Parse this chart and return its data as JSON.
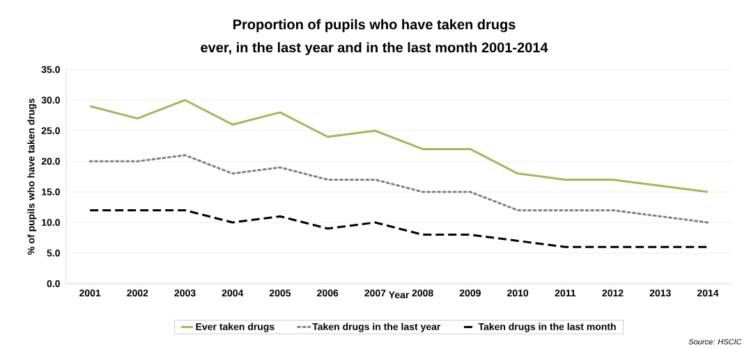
{
  "chart_data": {
    "type": "line",
    "title": "Proportion of pupils who have taken drugs",
    "subtitle": "ever, in the last year and in the last month 2001-2014",
    "xlabel": "Year",
    "ylabel": "% of pupils who have taken drugs",
    "categories": [
      "2001",
      "2002",
      "2003",
      "2004",
      "2005",
      "2006",
      "2007",
      "2008",
      "2009",
      "2010",
      "2011",
      "2012",
      "2013",
      "2014"
    ],
    "series": [
      {
        "name": "Ever taken drugs",
        "color": "#9bbb59",
        "line_style": "solid",
        "values": [
          29,
          27,
          30,
          26,
          28,
          24,
          25,
          22,
          22,
          18,
          17,
          17,
          16,
          15
        ]
      },
      {
        "name": "Taken drugs in the last year",
        "color": "#808080",
        "line_style": "dotted",
        "values": [
          20,
          20,
          21,
          18,
          19,
          17,
          17,
          15,
          15,
          12,
          12,
          12,
          11,
          10
        ]
      },
      {
        "name": "Taken drugs in the last month",
        "color": "#000000",
        "line_style": "dashed",
        "values": [
          12,
          12,
          12,
          10,
          11,
          9,
          10,
          8,
          8,
          7,
          6,
          6,
          6,
          6
        ]
      }
    ],
    "ylim": [
      0,
      35
    ],
    "yticks": [
      {
        "value": 0,
        "label": "0.0"
      },
      {
        "value": 5,
        "label": "5.0"
      },
      {
        "value": 10,
        "label": "10.0"
      },
      {
        "value": 15,
        "label": "15.0"
      },
      {
        "value": 20,
        "label": "20.0"
      },
      {
        "value": 25,
        "label": "25.0"
      },
      {
        "value": 30,
        "label": "30.0"
      },
      {
        "value": 35,
        "label": "35.0"
      }
    ],
    "grid": "y",
    "legend": "bottom",
    "marker": "none",
    "annotations": [
      "Source: HSCIC"
    ]
  }
}
